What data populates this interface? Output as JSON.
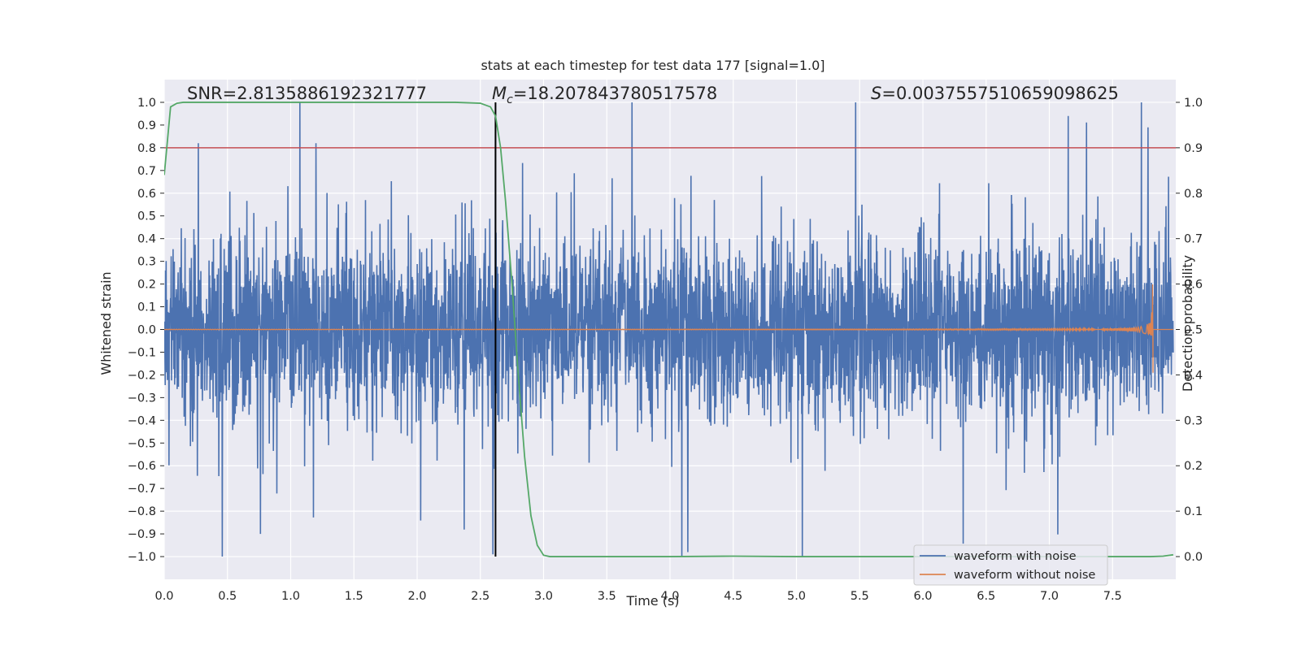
{
  "chart_data": {
    "type": "line",
    "title": "stats at each timestep for test data 177 [signal=1.0]",
    "xlabel": "Time (s)",
    "ylabel_left": "Whitened strain",
    "ylabel_right": "Detection probability",
    "xlim": [
      0.0,
      8.0
    ],
    "ylim_left": [
      -1.1,
      1.1
    ],
    "ylim_right": [
      -0.05,
      1.05
    ],
    "x_ticks": [
      "0.0",
      "0.5",
      "1.0",
      "1.5",
      "2.0",
      "2.5",
      "3.0",
      "3.5",
      "4.0",
      "4.5",
      "5.0",
      "5.5",
      "6.0",
      "6.5",
      "7.0",
      "7.5"
    ],
    "y_ticks_left": [
      "1.0",
      "0.9",
      "0.8",
      "0.7",
      "0.6",
      "0.5",
      "0.4",
      "0.3",
      "0.2",
      "0.1",
      "0.0",
      "−0.1",
      "−0.2",
      "−0.3",
      "−0.4",
      "−0.5",
      "−0.6",
      "−0.7",
      "−0.8",
      "−0.9",
      "−1.0"
    ],
    "y_ticks_right": [
      "1.0",
      "0.9",
      "0.8",
      "0.7",
      "0.6",
      "0.5",
      "0.4",
      "0.3",
      "0.2",
      "0.1",
      "0.0"
    ],
    "grid": true,
    "legend_position": "lower-right",
    "annotations": {
      "snr": "SNR=2.8135886192321777",
      "chirp_mass_symbol": "M",
      "chirp_mass_sub": "c",
      "chirp_mass_value": "=18.207843780517578",
      "s_symbol": "S",
      "s_value": "=0.0037557510659098625"
    },
    "threshold_probability": 0.9,
    "detection_time": 2.62,
    "series": [
      {
        "name": "waveform with noise",
        "color": "#4c72b0",
        "axis": "left",
        "description_stats": {
          "t_start": 0.0,
          "t_end": 7.98,
          "amplitude_range": [
            -1.0,
            1.0
          ]
        },
        "spikes": [
          {
            "t": 0.46,
            "v": -1.0
          },
          {
            "t": 0.76,
            "v": -0.9
          },
          {
            "t": 2.6,
            "v": -0.99
          },
          {
            "t": 3.7,
            "v": 1.0
          },
          {
            "t": 4.14,
            "v": -0.98
          },
          {
            "t": 7.15,
            "v": 0.94
          },
          {
            "t": 7.78,
            "v": 0.89
          },
          {
            "t": 2.62,
            "v": 0.87
          },
          {
            "t": 1.2,
            "v": 0.82
          },
          {
            "t": 0.27,
            "v": 0.82
          }
        ]
      },
      {
        "name": "waveform without noise",
        "color": "#dd8452",
        "axis": "left",
        "chirp": {
          "t_merge": 7.82,
          "peak_amplitude": 0.2
        }
      },
      {
        "name": "detection probability",
        "color": "#55a868",
        "axis": "right",
        "x": [
          0.0,
          0.05,
          0.1,
          0.15,
          0.2,
          0.5,
          1.0,
          1.5,
          2.0,
          2.3,
          2.5,
          2.58,
          2.62,
          2.66,
          2.7,
          2.75,
          2.8,
          2.85,
          2.9,
          2.95,
          3.0,
          3.05,
          3.2,
          3.5,
          4.0,
          4.5,
          5.0,
          5.5,
          6.0,
          6.5,
          7.0,
          7.5,
          7.8,
          7.9,
          7.98
        ],
        "y": [
          0.84,
          0.99,
          0.998,
          1.0,
          1.0,
          1.0,
          1.0,
          1.0,
          1.0,
          1.0,
          0.998,
          0.99,
          0.97,
          0.9,
          0.78,
          0.6,
          0.4,
          0.22,
          0.09,
          0.025,
          0.003,
          0.0,
          0.0,
          0.0,
          0.0,
          0.001,
          0.0,
          0.0,
          0.0,
          0.0,
          0.0,
          0.0,
          0.0,
          0.001,
          0.004
        ]
      }
    ],
    "colors": {
      "background": "#eaeaf2",
      "grid": "#ffffff",
      "threshold_line": "#c44e52",
      "detection_line": "#000000"
    }
  }
}
